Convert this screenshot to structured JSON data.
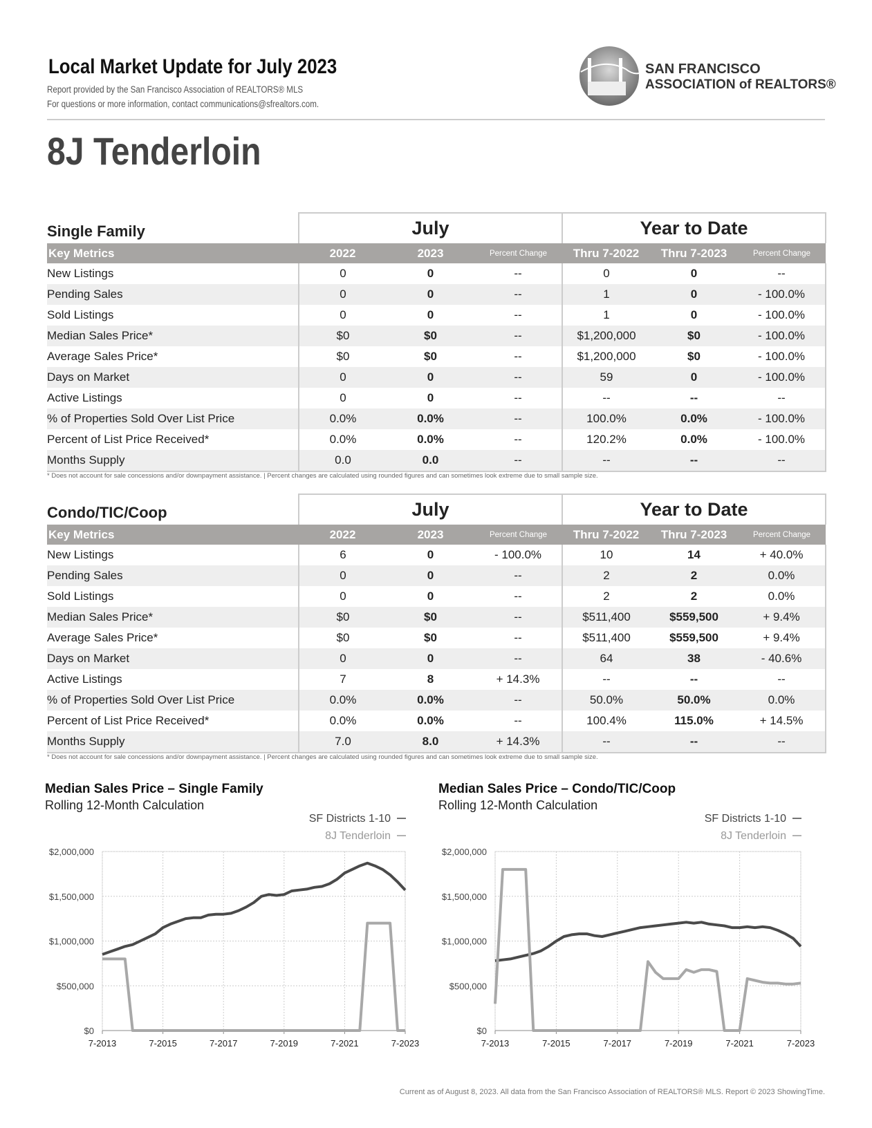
{
  "header": {
    "title": "Local Market Update for July 2023",
    "provider": "Report provided by the San Francisco Association of REALTORS® MLS",
    "contact": "For questions or more information, contact communications@sfrealtors.com.",
    "logo": [
      "SAN FRANCISCO",
      "ASSOCIATION of REALTORS®"
    ]
  },
  "area": "8J Tenderloin",
  "tables": [
    {
      "title": "Single Family",
      "groups": [
        "July",
        "Year to Date"
      ],
      "columns": [
        "Key Metrics",
        "2022",
        "2023",
        "Percent Change",
        "Thru 7-2022",
        "Thru 7-2023",
        "Percent Change"
      ],
      "rows": [
        [
          "New Listings",
          "0",
          "0",
          "--",
          "0",
          "0",
          "--"
        ],
        [
          "Pending Sales",
          "0",
          "0",
          "--",
          "1",
          "0",
          "- 100.0%"
        ],
        [
          "Sold Listings",
          "0",
          "0",
          "--",
          "1",
          "0",
          "- 100.0%"
        ],
        [
          "Median Sales Price*",
          "$0",
          "$0",
          "--",
          "$1,200,000",
          "$0",
          "- 100.0%"
        ],
        [
          "Average Sales Price*",
          "$0",
          "$0",
          "--",
          "$1,200,000",
          "$0",
          "- 100.0%"
        ],
        [
          "Days on Market",
          "0",
          "0",
          "--",
          "59",
          "0",
          "- 100.0%"
        ],
        [
          "Active Listings",
          "0",
          "0",
          "--",
          "--",
          "--",
          "--"
        ],
        [
          "% of Properties Sold Over List Price",
          "0.0%",
          "0.0%",
          "--",
          "100.0%",
          "0.0%",
          "- 100.0%"
        ],
        [
          "Percent of List Price Received*",
          "0.0%",
          "0.0%",
          "--",
          "120.2%",
          "0.0%",
          "- 100.0%"
        ],
        [
          "Months Supply",
          "0.0",
          "0.0",
          "--",
          "--",
          "--",
          "--"
        ]
      ],
      "footnote": "* Does not account for sale concessions and/or downpayment assistance.  |  Percent changes are calculated using rounded figures and can sometimes look extreme due to small sample size."
    },
    {
      "title": "Condo/TIC/Coop",
      "groups": [
        "July",
        "Year to Date"
      ],
      "columns": [
        "Key Metrics",
        "2022",
        "2023",
        "Percent Change",
        "Thru 7-2022",
        "Thru 7-2023",
        "Percent Change"
      ],
      "rows": [
        [
          "New Listings",
          "6",
          "0",
          "- 100.0%",
          "10",
          "14",
          "+ 40.0%"
        ],
        [
          "Pending Sales",
          "0",
          "0",
          "--",
          "2",
          "2",
          "0.0%"
        ],
        [
          "Sold Listings",
          "0",
          "0",
          "--",
          "2",
          "2",
          "0.0%"
        ],
        [
          "Median Sales Price*",
          "$0",
          "$0",
          "--",
          "$511,400",
          "$559,500",
          "+ 9.4%"
        ],
        [
          "Average Sales Price*",
          "$0",
          "$0",
          "--",
          "$511,400",
          "$559,500",
          "+ 9.4%"
        ],
        [
          "Days on Market",
          "0",
          "0",
          "--",
          "64",
          "38",
          "- 40.6%"
        ],
        [
          "Active Listings",
          "7",
          "8",
          "+ 14.3%",
          "--",
          "--",
          "--"
        ],
        [
          "% of Properties Sold Over List Price",
          "0.0%",
          "0.0%",
          "--",
          "50.0%",
          "50.0%",
          "0.0%"
        ],
        [
          "Percent of List Price Received*",
          "0.0%",
          "0.0%",
          "--",
          "100.4%",
          "115.0%",
          "+ 14.5%"
        ],
        [
          "Months Supply",
          "7.0",
          "8.0",
          "+ 14.3%",
          "--",
          "--",
          "--"
        ]
      ],
      "footnote": "* Does not account for sale concessions and/or downpayment assistance.  |  Percent changes are calculated using rounded figures and can sometimes look extreme due to small sample size."
    }
  ],
  "chart_data": [
    {
      "type": "line",
      "title": "Median Sales Price – Single Family",
      "subtitle": "Rolling 12-Month Calculation",
      "legend": "top-right",
      "grid": true,
      "x": [
        "7-2013",
        "10-2013",
        "1-2014",
        "4-2014",
        "7-2014",
        "10-2014",
        "1-2015",
        "4-2015",
        "7-2015",
        "10-2015",
        "1-2016",
        "4-2016",
        "7-2016",
        "10-2016",
        "1-2017",
        "4-2017",
        "7-2017",
        "10-2017",
        "1-2018",
        "4-2018",
        "7-2018",
        "10-2018",
        "1-2019",
        "4-2019",
        "7-2019",
        "10-2019",
        "1-2020",
        "4-2020",
        "7-2020",
        "10-2020",
        "1-2021",
        "4-2021",
        "7-2021",
        "10-2021",
        "1-2022",
        "4-2022",
        "7-2022",
        "10-2022",
        "1-2023",
        "4-2023",
        "7-2023"
      ],
      "xticks": [
        "7-2013",
        "7-2015",
        "7-2017",
        "7-2019",
        "7-2021",
        "7-2023"
      ],
      "ylim": [
        0,
        2000000
      ],
      "yticks": [
        {
          "value": 0,
          "label": "$0"
        },
        {
          "value": 500000,
          "label": "$500,000"
        },
        {
          "value": 1000000,
          "label": "$1,000,000"
        },
        {
          "value": 1500000,
          "label": "$1,500,000"
        },
        {
          "value": 2000000,
          "label": "$2,000,000"
        }
      ],
      "series": [
        {
          "name": "SF Districts 1-10",
          "color": "#4a4a4a",
          "values": [
            850000,
            880000,
            910000,
            940000,
            960000,
            1000000,
            1040000,
            1080000,
            1150000,
            1190000,
            1220000,
            1250000,
            1260000,
            1260000,
            1290000,
            1300000,
            1300000,
            1310000,
            1340000,
            1380000,
            1430000,
            1500000,
            1520000,
            1510000,
            1520000,
            1560000,
            1570000,
            1580000,
            1600000,
            1610000,
            1640000,
            1690000,
            1760000,
            1800000,
            1840000,
            1870000,
            1840000,
            1800000,
            1740000,
            1660000,
            1570000
          ]
        },
        {
          "name": "8J Tenderloin",
          "color": "#a8a8a8",
          "values": [
            800000,
            800000,
            800000,
            800000,
            0,
            0,
            0,
            0,
            0,
            0,
            0,
            0,
            0,
            0,
            0,
            0,
            0,
            0,
            0,
            0,
            0,
            0,
            0,
            0,
            0,
            0,
            0,
            0,
            0,
            0,
            0,
            0,
            0,
            0,
            0,
            1200000,
            1200000,
            1200000,
            1200000,
            0,
            0
          ]
        }
      ]
    },
    {
      "type": "line",
      "title": "Median Sales Price – Condo/TIC/Coop",
      "subtitle": "Rolling 12-Month Calculation",
      "legend": "top-right",
      "grid": true,
      "x": [
        "7-2013",
        "10-2013",
        "1-2014",
        "4-2014",
        "7-2014",
        "10-2014",
        "1-2015",
        "4-2015",
        "7-2015",
        "10-2015",
        "1-2016",
        "4-2016",
        "7-2016",
        "10-2016",
        "1-2017",
        "4-2017",
        "7-2017",
        "10-2017",
        "1-2018",
        "4-2018",
        "7-2018",
        "10-2018",
        "1-2019",
        "4-2019",
        "7-2019",
        "10-2019",
        "1-2020",
        "4-2020",
        "7-2020",
        "10-2020",
        "1-2021",
        "4-2021",
        "7-2021",
        "10-2021",
        "1-2022",
        "4-2022",
        "7-2022",
        "10-2022",
        "1-2023",
        "4-2023",
        "7-2023"
      ],
      "xticks": [
        "7-2013",
        "7-2015",
        "7-2017",
        "7-2019",
        "7-2021",
        "7-2023"
      ],
      "ylim": [
        0,
        2000000
      ],
      "yticks": [
        {
          "value": 0,
          "label": "$0"
        },
        {
          "value": 500000,
          "label": "$500,000"
        },
        {
          "value": 1000000,
          "label": "$1,000,000"
        },
        {
          "value": 1500000,
          "label": "$1,500,000"
        },
        {
          "value": 2000000,
          "label": "$2,000,000"
        }
      ],
      "series": [
        {
          "name": "SF Districts 1-10",
          "color": "#4a4a4a",
          "values": [
            780000,
            790000,
            800000,
            820000,
            840000,
            860000,
            890000,
            940000,
            1000000,
            1050000,
            1070000,
            1080000,
            1080000,
            1060000,
            1050000,
            1070000,
            1090000,
            1110000,
            1130000,
            1150000,
            1160000,
            1170000,
            1180000,
            1190000,
            1200000,
            1210000,
            1200000,
            1210000,
            1190000,
            1180000,
            1170000,
            1150000,
            1150000,
            1160000,
            1150000,
            1160000,
            1150000,
            1120000,
            1080000,
            1030000,
            940000
          ]
        },
        {
          "name": "8J Tenderloin",
          "color": "#a8a8a8",
          "values": [
            300000,
            1800000,
            1800000,
            1800000,
            1800000,
            0,
            0,
            0,
            0,
            0,
            0,
            0,
            0,
            0,
            0,
            0,
            0,
            0,
            0,
            0,
            770000,
            650000,
            580000,
            580000,
            580000,
            680000,
            650000,
            680000,
            680000,
            660000,
            0,
            0,
            0,
            580000,
            560000,
            540000,
            530000,
            530000,
            520000,
            520000,
            530000
          ]
        }
      ]
    }
  ],
  "footer": "Current as of August 8, 2023. All data from the San Francisco Association of REALTORS® MLS. Report © 2023 ShowingTime."
}
